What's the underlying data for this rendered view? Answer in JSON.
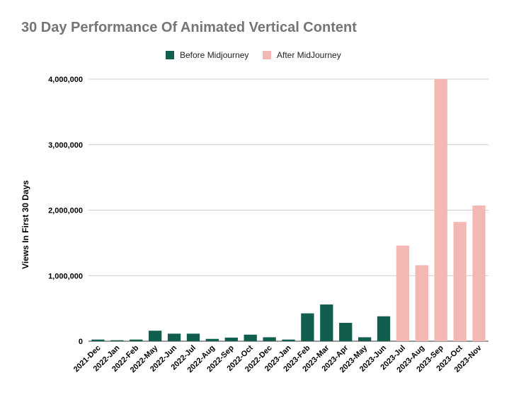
{
  "chart_data": {
    "type": "bar",
    "title": "30 Day Performance Of Animated Vertical Content",
    "xlabel": "",
    "ylabel": "Views In First 30 Days",
    "ylim": [
      0,
      4000000
    ],
    "yticks": [
      0,
      1000000,
      2000000,
      3000000,
      4000000
    ],
    "ytick_labels": [
      "0",
      "1,000,000",
      "2,000,000",
      "3,000,000",
      "4,000,000"
    ],
    "grid": true,
    "legend_position": "top-center",
    "categories": [
      "2021-Dec",
      "2022-Jan",
      "2022-Feb",
      "2022-May",
      "2022-Jun",
      "2022-Jul",
      "2022-Aug",
      "2022-Sep",
      "2022-Oct",
      "2022-Dec",
      "2023-Jan",
      "2023-Feb",
      "2023-Mar",
      "2023-Apr",
      "2023-May",
      "2023-Jun",
      "2023-Jul",
      "2023-Aug",
      "2023-Sep",
      "2023-Oct",
      "2023-Nov"
    ],
    "series": [
      {
        "name": "Before Midjourney",
        "color": "#115e4f",
        "values": [
          25000,
          15000,
          25000,
          160000,
          115000,
          115000,
          35000,
          55000,
          100000,
          60000,
          25000,
          425000,
          560000,
          280000,
          60000,
          380000,
          null,
          null,
          null,
          null,
          null
        ]
      },
      {
        "name": "After MidJourney",
        "color": "#f4b8b4",
        "values": [
          null,
          null,
          null,
          null,
          null,
          null,
          null,
          null,
          null,
          null,
          null,
          null,
          null,
          null,
          null,
          null,
          1460000,
          1160000,
          4000000,
          1820000,
          2070000
        ]
      }
    ]
  }
}
